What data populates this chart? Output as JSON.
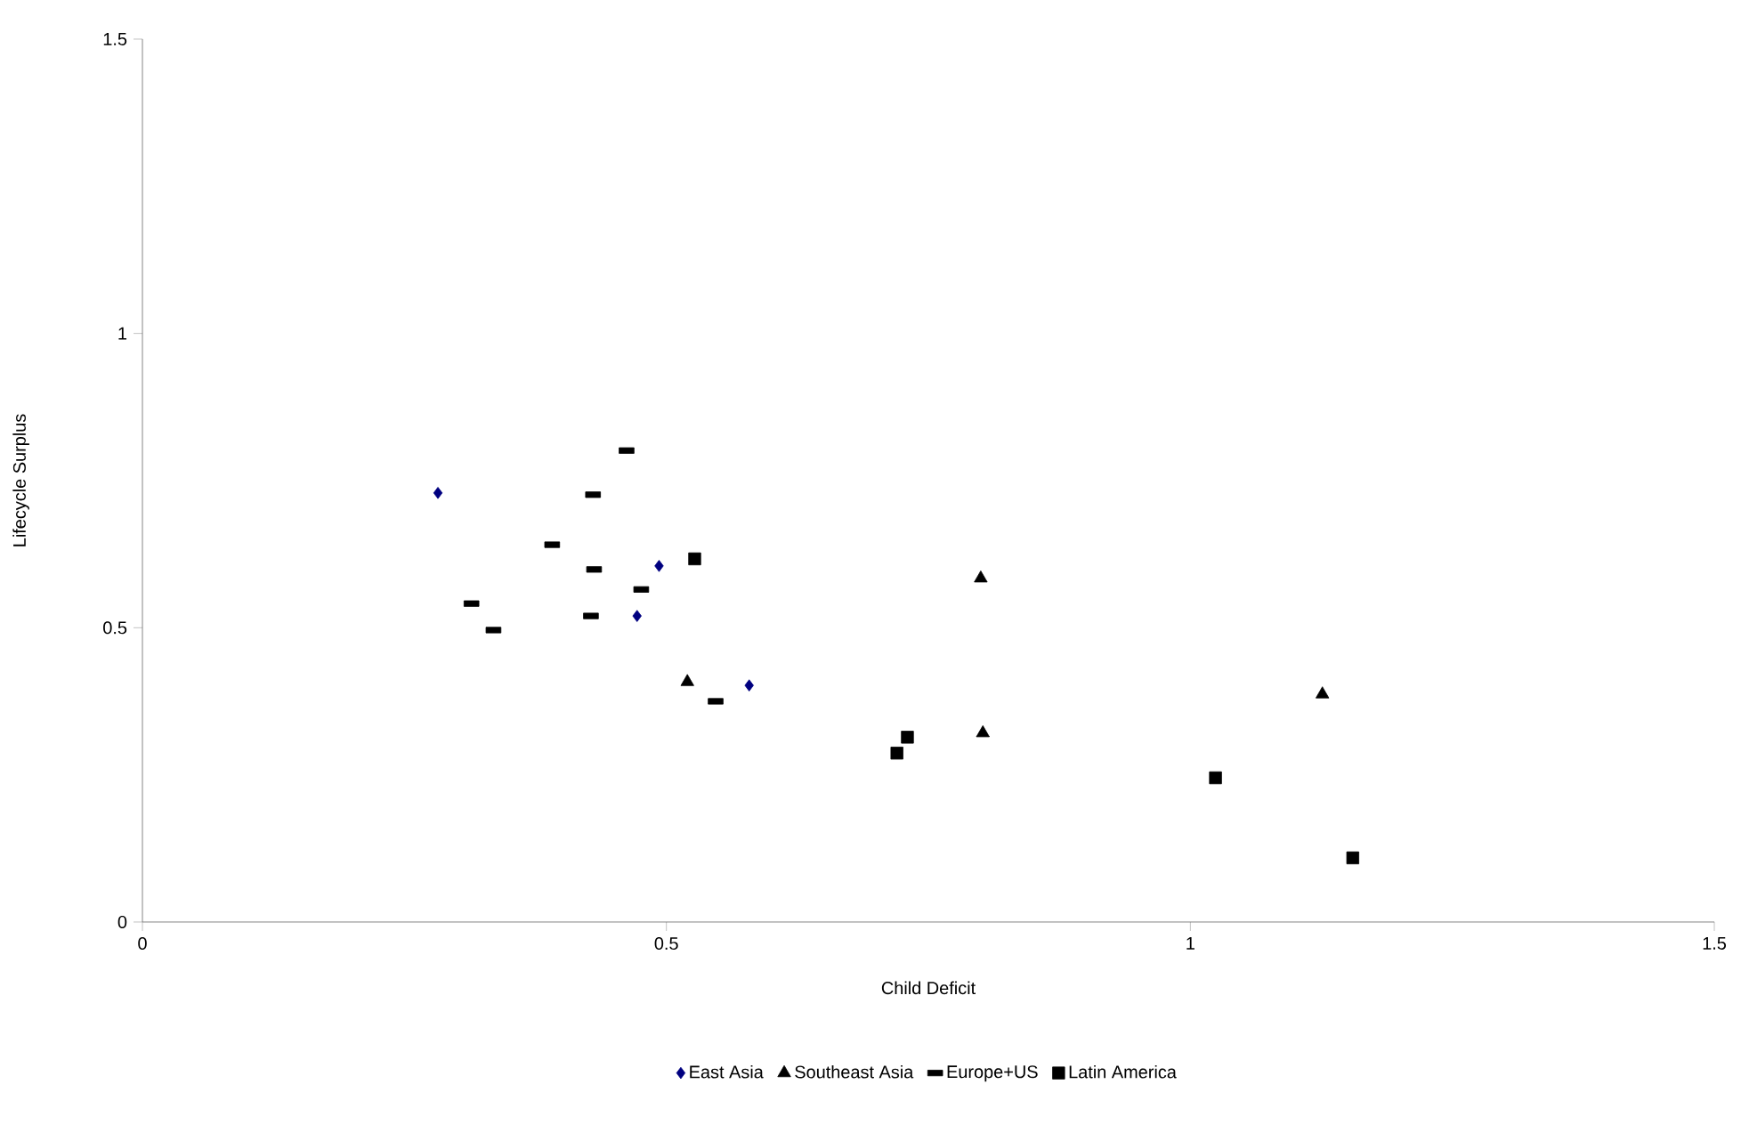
{
  "chart_data": {
    "type": "scatter",
    "xlabel": "Child Deficit",
    "ylabel": "Lifecycle Surplus",
    "xlim": [
      0,
      1.5
    ],
    "ylim": [
      0,
      1.5
    ],
    "xticks": [
      0,
      0.5,
      1,
      1.5
    ],
    "yticks": [
      0,
      0.5,
      1,
      1.5
    ],
    "grid": false,
    "legend": "bottom",
    "series": [
      {
        "name": "East Asia",
        "color": "#000080",
        "marker": "diamond",
        "x": [
          0.282,
          0.493,
          0.472,
          0.579
        ],
        "values": [
          0.729,
          0.605,
          0.52,
          0.402
        ]
      },
      {
        "name": "Southeast Asia",
        "color": "#000000",
        "marker": "triangle",
        "x": [
          0.52,
          0.8,
          0.802,
          1.126
        ],
        "values": [
          0.408,
          0.584,
          0.321,
          0.387
        ]
      },
      {
        "name": "Europe+US",
        "color": "#000000",
        "x": [
          0.462,
          0.43,
          0.391,
          0.431,
          0.476,
          0.314,
          0.335,
          0.428,
          0.547
        ],
        "values": [
          0.801,
          0.726,
          0.641,
          0.599,
          0.565,
          0.541,
          0.496,
          0.52,
          0.375
        ]
      },
      {
        "name": "Latin America",
        "color": "#000000",
        "marker": "square",
        "x": [
          0.527,
          0.72,
          0.73,
          1.024,
          1.155
        ],
        "values": [
          0.617,
          0.287,
          0.314,
          0.245,
          0.109
        ]
      }
    ]
  }
}
